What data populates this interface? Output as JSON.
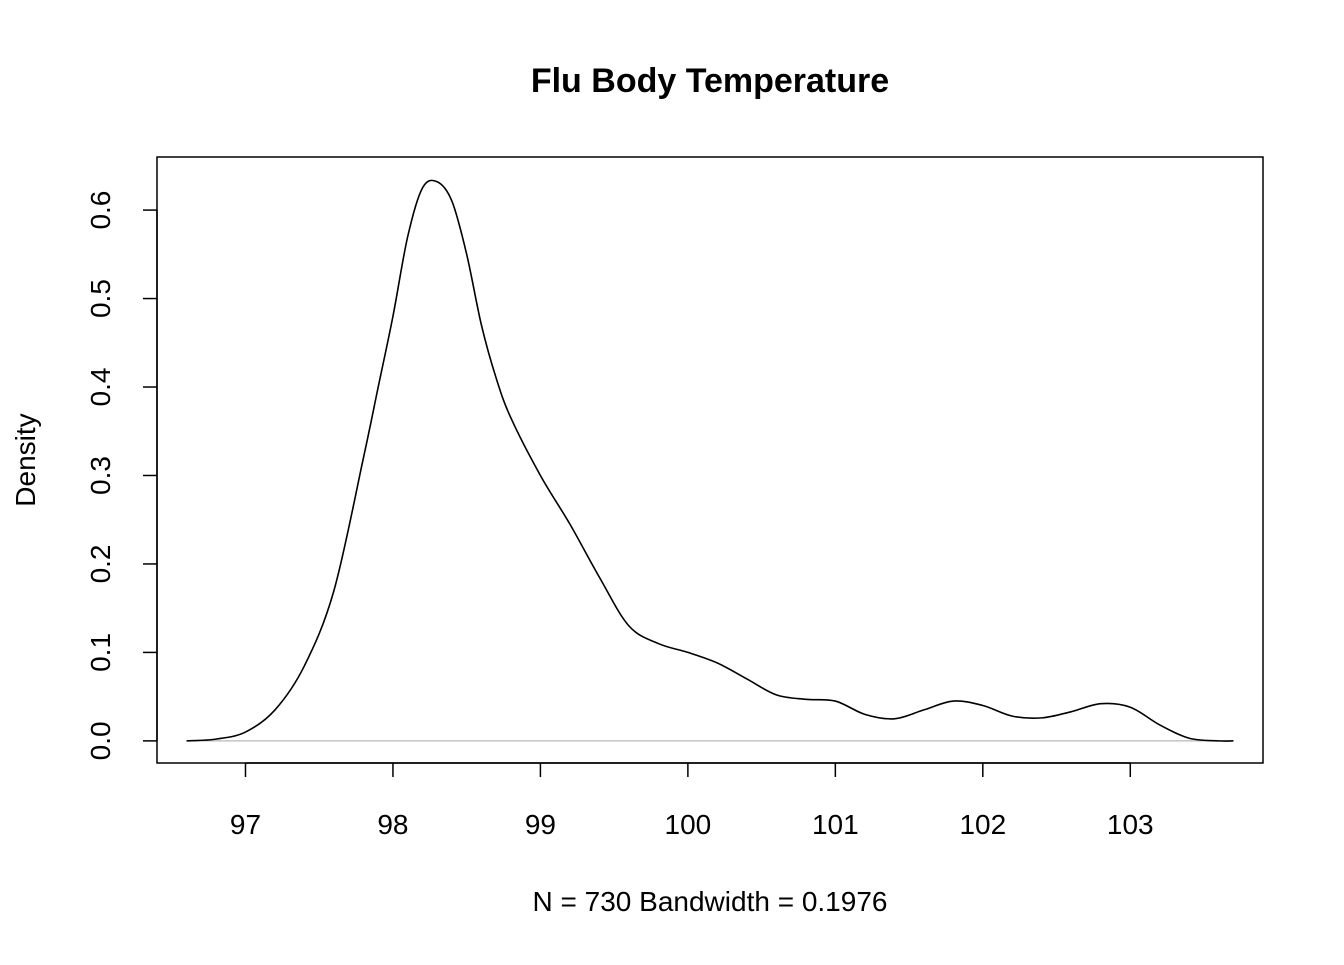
{
  "chart_data": {
    "type": "line",
    "title": "Flu Body Temperature",
    "xlabel": "N = 730   Bandwidth = 0.1976",
    "ylabel": "Density",
    "xlim": [
      96.4,
      103.9
    ],
    "ylim": [
      -0.025,
      0.66
    ],
    "x_ticks": [
      "97",
      "98",
      "99",
      "100",
      "101",
      "102",
      "103"
    ],
    "y_ticks": [
      "0.0",
      "0.1",
      "0.2",
      "0.3",
      "0.4",
      "0.5",
      "0.6"
    ],
    "zero_line": true,
    "grid": false,
    "legend": "none",
    "series": [
      {
        "x": [
          96.6,
          96.8,
          97.0,
          97.2,
          97.4,
          97.6,
          97.8,
          97.9,
          98.0,
          98.1,
          98.2,
          98.3,
          98.4,
          98.5,
          98.6,
          98.7,
          98.8,
          99.0,
          99.2,
          99.4,
          99.6,
          99.8,
          100.0,
          100.2,
          100.4,
          100.6,
          100.8,
          101.0,
          101.2,
          101.4,
          101.6,
          101.8,
          102.0,
          102.2,
          102.4,
          102.6,
          102.8,
          103.0,
          103.2,
          103.4,
          103.6,
          103.7
        ],
        "y": [
          0.0,
          0.002,
          0.01,
          0.035,
          0.085,
          0.17,
          0.32,
          0.4,
          0.48,
          0.57,
          0.625,
          0.632,
          0.61,
          0.55,
          0.47,
          0.41,
          0.365,
          0.3,
          0.245,
          0.185,
          0.13,
          0.11,
          0.1,
          0.088,
          0.07,
          0.052,
          0.047,
          0.045,
          0.03,
          0.025,
          0.035,
          0.045,
          0.04,
          0.028,
          0.026,
          0.033,
          0.042,
          0.038,
          0.018,
          0.003,
          0.0,
          0.0
        ]
      }
    ]
  },
  "colors": {
    "line": "#000000",
    "zero_line": "#b8b8b8",
    "frame": "#000000",
    "background": "#ffffff"
  }
}
